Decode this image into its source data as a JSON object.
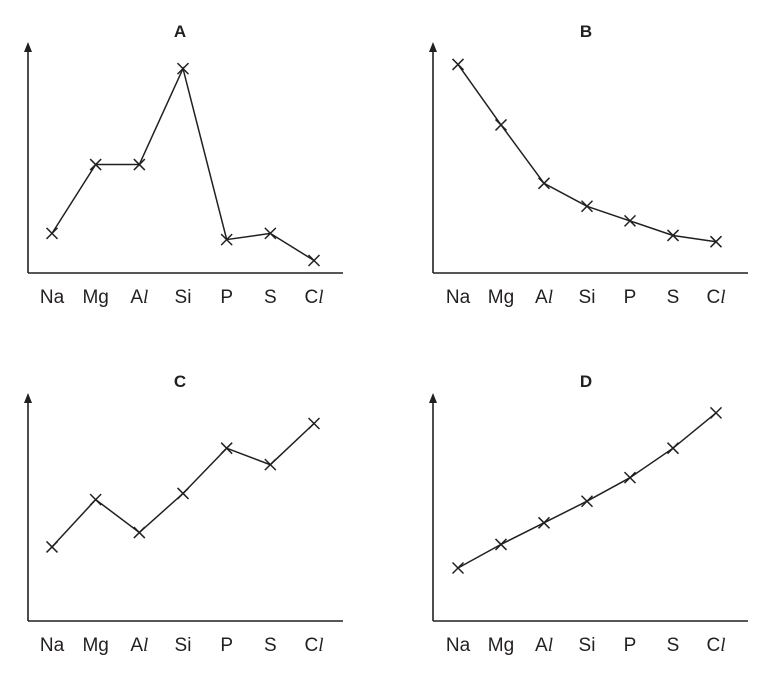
{
  "chart_data": [
    {
      "type": "line",
      "title": "A",
      "categories": [
        "Na",
        "Mg",
        "Al",
        "Si",
        "P",
        "S",
        "Cl"
      ],
      "values": [
        0.19,
        0.52,
        0.52,
        0.98,
        0.16,
        0.19,
        0.06
      ],
      "ylim": [
        0,
        1.05
      ],
      "grid": false,
      "marker": "x"
    },
    {
      "type": "line",
      "title": "B",
      "categories": [
        "Na",
        "Mg",
        "Al",
        "Si",
        "P",
        "S",
        "Cl"
      ],
      "values": [
        1.0,
        0.71,
        0.43,
        0.32,
        0.25,
        0.18,
        0.15
      ],
      "ylim": [
        0,
        1.05
      ],
      "grid": false,
      "marker": "x"
    },
    {
      "type": "line",
      "title": "C",
      "categories": [
        "Na",
        "Mg",
        "Al",
        "Si",
        "P",
        "S",
        "Cl"
      ],
      "values": [
        0.36,
        0.59,
        0.43,
        0.62,
        0.84,
        0.76,
        0.96
      ],
      "ylim": [
        0,
        1.05
      ],
      "grid": false,
      "marker": "x"
    },
    {
      "type": "line",
      "title": "D",
      "categories": [
        "Na",
        "Mg",
        "Al",
        "Si",
        "P",
        "S",
        "Cl"
      ],
      "values": [
        0.27,
        0.39,
        0.5,
        0.61,
        0.73,
        0.88,
        1.06
      ],
      "ylim": [
        0,
        1.1
      ],
      "grid": false,
      "marker": "x"
    }
  ]
}
